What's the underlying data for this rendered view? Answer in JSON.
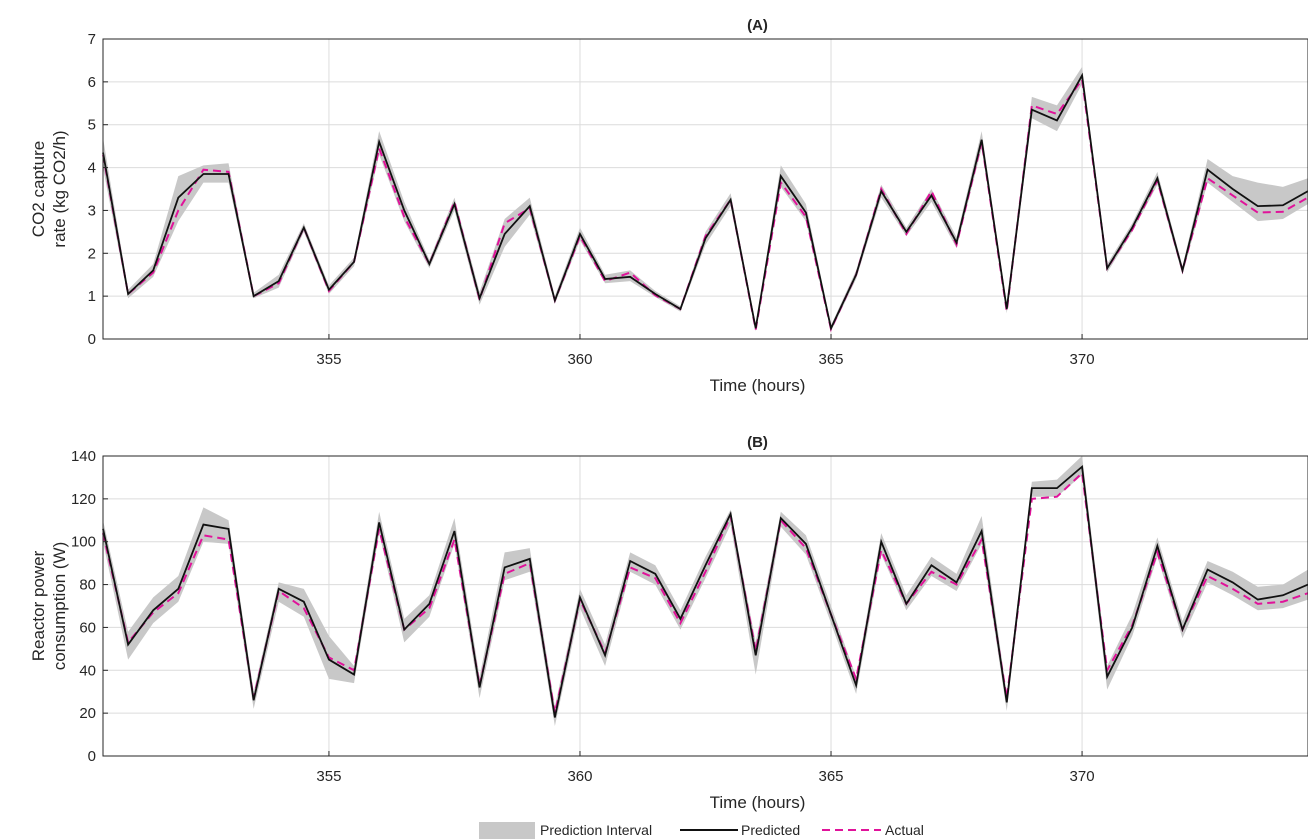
{
  "colors": {
    "band": "#c8c8c8",
    "predicted": "#111111",
    "actual": "#e0139a"
  },
  "legend": {
    "interval": "Prediction Interval",
    "predicted": "Predicted",
    "actual": "Actual"
  },
  "chart_data": [
    {
      "type": "line",
      "title": "(A)",
      "xlabel": "Time (hours)",
      "ylabel": "CO2 capture rate (kg CO2/h)",
      "ylabel_lines": [
        "CO2 capture",
        "rate (kg CO2/h)"
      ],
      "xlim": [
        350.5,
        374.5
      ],
      "ylim": [
        0,
        7
      ],
      "xticks": [
        355,
        360,
        365,
        370
      ],
      "yticks": [
        0,
        1,
        2,
        3,
        4,
        5,
        6,
        7
      ],
      "grid": true,
      "x": [
        350.5,
        351.0,
        351.5,
        352.0,
        352.5,
        353.0,
        353.5,
        354.0,
        354.5,
        355.0,
        355.5,
        356.0,
        356.5,
        357.0,
        357.5,
        358.0,
        358.5,
        359.0,
        359.5,
        360.0,
        360.5,
        361.0,
        361.5,
        362.0,
        362.5,
        363.0,
        363.5,
        364.0,
        364.5,
        365.0,
        365.5,
        366.0,
        366.5,
        367.0,
        367.5,
        368.0,
        368.5,
        369.0,
        369.5,
        370.0,
        370.5,
        371.0,
        371.5,
        372.0,
        372.5,
        373.0,
        373.5,
        374.0,
        374.5
      ],
      "series": [
        {
          "name": "Predicted",
          "values": [
            4.35,
            1.05,
            1.6,
            3.3,
            3.85,
            3.85,
            1.0,
            1.35,
            2.6,
            1.15,
            1.8,
            4.6,
            3.0,
            1.75,
            3.15,
            0.95,
            2.45,
            3.1,
            0.9,
            2.45,
            1.4,
            1.45,
            1.05,
            0.7,
            2.35,
            3.25,
            0.25,
            3.8,
            2.95,
            0.25,
            1.5,
            3.45,
            2.5,
            3.35,
            2.25,
            4.65,
            0.7,
            5.35,
            5.1,
            6.15,
            1.65,
            2.6,
            3.75,
            1.6,
            3.95,
            3.5,
            3.1,
            3.12,
            3.45
          ]
        },
        {
          "name": "Actual",
          "values": [
            4.3,
            1.05,
            1.55,
            3.0,
            3.95,
            3.9,
            1.0,
            1.3,
            2.6,
            1.12,
            1.8,
            4.45,
            2.85,
            1.75,
            3.2,
            0.92,
            2.7,
            3.05,
            0.9,
            2.4,
            1.35,
            1.55,
            1.02,
            0.7,
            2.4,
            3.25,
            0.22,
            3.65,
            2.85,
            0.23,
            1.5,
            3.5,
            2.45,
            3.45,
            2.2,
            4.6,
            0.65,
            5.45,
            5.25,
            6.05,
            1.65,
            2.55,
            3.7,
            1.6,
            3.75,
            3.35,
            2.95,
            2.97,
            3.3
          ]
        },
        {
          "name": "Prediction Interval lower",
          "values": [
            4.0,
            0.95,
            1.45,
            2.75,
            3.65,
            3.65,
            0.95,
            1.2,
            2.5,
            1.05,
            1.7,
            4.3,
            2.75,
            1.65,
            3.0,
            0.8,
            2.15,
            2.9,
            0.82,
            2.3,
            1.3,
            1.35,
            0.98,
            0.64,
            2.2,
            3.1,
            0.18,
            3.55,
            2.75,
            0.18,
            1.4,
            3.3,
            2.4,
            3.2,
            2.12,
            4.45,
            0.6,
            5.15,
            4.85,
            5.95,
            1.55,
            2.5,
            3.6,
            1.5,
            3.65,
            3.2,
            2.75,
            2.8,
            3.15
          ]
        },
        {
          "name": "Prediction Interval upper",
          "values": [
            4.7,
            1.15,
            1.75,
            3.8,
            4.05,
            4.1,
            1.08,
            1.5,
            2.7,
            1.25,
            1.9,
            4.85,
            3.2,
            1.85,
            3.3,
            1.1,
            2.8,
            3.3,
            1.0,
            2.6,
            1.5,
            1.6,
            1.12,
            0.76,
            2.5,
            3.4,
            0.32,
            4.05,
            3.15,
            0.32,
            1.6,
            3.6,
            2.6,
            3.5,
            2.38,
            4.85,
            0.8,
            5.65,
            5.45,
            6.35,
            1.75,
            2.7,
            3.9,
            1.7,
            4.2,
            3.8,
            3.65,
            3.55,
            3.75
          ]
        }
      ]
    },
    {
      "type": "line",
      "title": "(B)",
      "xlabel": "Time (hours)",
      "ylabel": "Reactor power consumption (W)",
      "ylabel_lines": [
        "Reactor power",
        "consumption (W)"
      ],
      "xlim": [
        350.5,
        374.5
      ],
      "ylim": [
        0,
        140
      ],
      "xticks": [
        355,
        360,
        365,
        370
      ],
      "yticks": [
        0,
        20,
        40,
        60,
        80,
        100,
        120,
        140
      ],
      "grid": true,
      "x": [
        350.5,
        351.0,
        351.5,
        352.0,
        352.5,
        353.0,
        353.5,
        354.0,
        354.5,
        355.0,
        355.5,
        356.0,
        356.5,
        357.0,
        357.5,
        358.0,
        358.5,
        359.0,
        359.5,
        360.0,
        360.5,
        361.0,
        361.5,
        362.0,
        362.5,
        363.0,
        363.5,
        364.0,
        364.5,
        365.0,
        365.5,
        366.0,
        366.5,
        367.0,
        367.5,
        368.0,
        368.5,
        369.0,
        369.5,
        370.0,
        370.5,
        371.0,
        371.5,
        372.0,
        372.5,
        373.0,
        373.5,
        374.0,
        374.5
      ],
      "series": [
        {
          "name": "Predicted",
          "values": [
            106,
            52,
            68,
            78,
            108,
            106,
            26,
            78,
            72,
            45,
            38,
            109,
            59,
            71,
            105,
            32,
            88,
            92,
            18,
            74,
            47,
            91,
            85,
            64,
            89,
            113,
            47,
            111,
            99,
            66,
            33,
            100,
            71,
            89,
            81,
            105,
            25,
            125,
            125,
            135,
            37,
            60,
            98,
            59,
            87,
            81,
            73,
            75,
            80
          ]
        },
        {
          "name": "Actual",
          "values": [
            104,
            53,
            67,
            76,
            103,
            101,
            27,
            77,
            69,
            46,
            40,
            106,
            59,
            69,
            101,
            33,
            85,
            90,
            20,
            73,
            48,
            88,
            83,
            62,
            86,
            112,
            49,
            110,
            97,
            66,
            36,
            96,
            71,
            86,
            80,
            101,
            27,
            120,
            121,
            132,
            40,
            61,
            95,
            59,
            84,
            78,
            71,
            72,
            76
          ]
        },
        {
          "name": "Prediction Interval lower",
          "values": [
            100,
            45,
            62,
            72,
            100,
            99,
            22,
            72,
            65,
            36,
            34,
            104,
            53,
            65,
            99,
            27,
            82,
            86,
            14,
            69,
            42,
            86,
            80,
            59,
            83,
            108,
            38,
            107,
            94,
            62,
            29,
            94,
            68,
            84,
            77,
            99,
            21,
            121,
            121,
            131,
            31,
            56,
            93,
            55,
            81,
            75,
            68,
            69,
            73
          ]
        },
        {
          "name": "Prediction Interval upper",
          "values": [
            110,
            58,
            74,
            84,
            116,
            110,
            30,
            81,
            78,
            56,
            42,
            114,
            64,
            75,
            111,
            37,
            95,
            97,
            23,
            78,
            52,
            95,
            89,
            68,
            93,
            115,
            53,
            114,
            103,
            70,
            37,
            104,
            75,
            93,
            85,
            112,
            29,
            128,
            129,
            140,
            42,
            66,
            102,
            63,
            91,
            86,
            79,
            80,
            87
          ]
        }
      ]
    }
  ]
}
